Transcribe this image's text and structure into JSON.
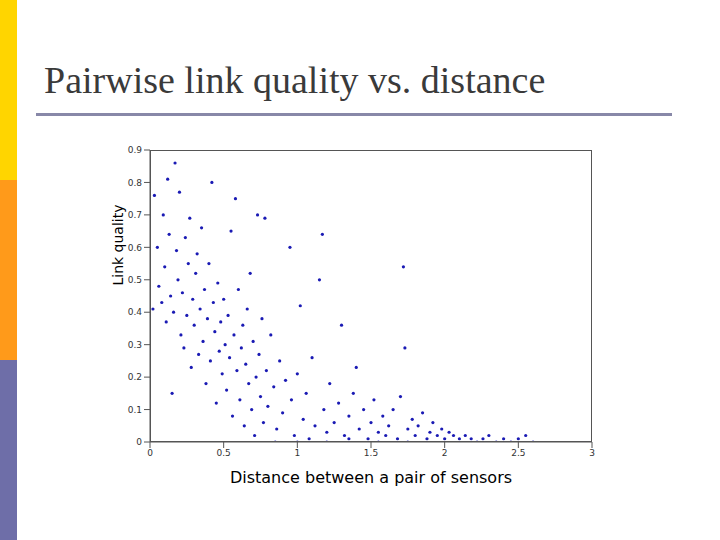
{
  "chart_data": {
    "type": "scatter",
    "title": "Pairwise link quality vs. distance",
    "x_label": "Distance between a pair of sensors",
    "y_label": "Link quality",
    "color": "#1a1ab4",
    "marker": "dot",
    "xlim": [
      0,
      3
    ],
    "xticks": [
      0,
      0.5,
      1,
      1.5,
      2,
      2.5,
      3
    ],
    "ylim": [
      0,
      0.9
    ],
    "yticks": [
      0,
      0.1,
      0.2,
      0.3,
      0.4,
      0.5,
      0.6,
      0.7,
      0.8,
      0.9
    ],
    "grid": false,
    "x": [
      0.02,
      0.03,
      0.05,
      0.06,
      0.08,
      0.09,
      0.1,
      0.11,
      0.12,
      0.13,
      0.14,
      0.15,
      0.16,
      0.17,
      0.18,
      0.19,
      0.2,
      0.21,
      0.22,
      0.23,
      0.24,
      0.25,
      0.26,
      0.27,
      0.28,
      0.29,
      0.3,
      0.31,
      0.32,
      0.33,
      0.34,
      0.35,
      0.36,
      0.37,
      0.38,
      0.39,
      0.4,
      0.41,
      0.42,
      0.43,
      0.44,
      0.45,
      0.46,
      0.47,
      0.48,
      0.49,
      0.5,
      0.51,
      0.52,
      0.53,
      0.54,
      0.55,
      0.56,
      0.57,
      0.58,
      0.59,
      0.6,
      0.61,
      0.62,
      0.63,
      0.64,
      0.65,
      0.66,
      0.67,
      0.68,
      0.69,
      0.7,
      0.71,
      0.72,
      0.73,
      0.74,
      0.75,
      0.76,
      0.77,
      0.78,
      0.79,
      0.8,
      0.82,
      0.84,
      0.86,
      0.88,
      0.9,
      0.92,
      0.95,
      0.96,
      0.98,
      1.0,
      1.02,
      1.04,
      1.06,
      1.08,
      1.1,
      1.12,
      1.15,
      1.17,
      1.18,
      1.2,
      1.22,
      1.25,
      1.28,
      1.3,
      1.32,
      1.35,
      1.38,
      1.4,
      1.42,
      1.45,
      1.48,
      1.5,
      1.52,
      1.55,
      1.58,
      1.6,
      1.62,
      1.65,
      1.68,
      1.7,
      1.72,
      1.73,
      1.75,
      1.78,
      1.8,
      1.82,
      1.85,
      1.88,
      1.9,
      1.92,
      1.95,
      1.98,
      2.0,
      2.03,
      2.06,
      2.1,
      2.14,
      2.18,
      2.22,
      2.26,
      2.3,
      2.35,
      2.4,
      2.45,
      2.5,
      2.55,
      2.6,
      0.85,
      1.0,
      1.2,
      1.35,
      1.55,
      1.75
    ],
    "values": [
      0.41,
      0.76,
      0.6,
      0.48,
      0.43,
      0.7,
      0.54,
      0.37,
      0.81,
      0.64,
      0.45,
      0.15,
      0.4,
      0.86,
      0.59,
      0.5,
      0.77,
      0.33,
      0.46,
      0.29,
      0.63,
      0.39,
      0.55,
      0.69,
      0.23,
      0.44,
      0.36,
      0.52,
      0.58,
      0.27,
      0.41,
      0.66,
      0.31,
      0.47,
      0.18,
      0.38,
      0.55,
      0.25,
      0.8,
      0.43,
      0.34,
      0.12,
      0.49,
      0.28,
      0.37,
      0.21,
      0.44,
      0.3,
      0.16,
      0.39,
      0.26,
      0.65,
      0.08,
      0.33,
      0.75,
      0.22,
      0.47,
      0.13,
      0.29,
      0.36,
      0.05,
      0.24,
      0.41,
      0.18,
      0.52,
      0.1,
      0.31,
      0.02,
      0.2,
      0.7,
      0.27,
      0.14,
      0.38,
      0.06,
      0.69,
      0.22,
      0.11,
      0.33,
      0.17,
      0.04,
      0.25,
      0.09,
      0.19,
      0.6,
      0.13,
      0.02,
      0.21,
      0.42,
      0.07,
      0.15,
      0.01,
      0.26,
      0.05,
      0.5,
      0.64,
      0.1,
      0.03,
      0.18,
      0.06,
      0.12,
      0.36,
      0.02,
      0.08,
      0.15,
      0.23,
      0.04,
      0.1,
      0.01,
      0.06,
      0.13,
      0.03,
      0.08,
      0.02,
      0.05,
      0.1,
      0.01,
      0.14,
      0.54,
      0.29,
      0.04,
      0.07,
      0.02,
      0.05,
      0.09,
      0.01,
      0.03,
      0.06,
      0.02,
      0.04,
      0.01,
      0.03,
      0.02,
      0.01,
      0.02,
      0.01,
      0,
      0.01,
      0.02,
      0,
      0.01,
      0,
      0.01,
      0.02,
      0,
      0,
      0,
      0,
      0.01,
      0,
      0
    ]
  }
}
